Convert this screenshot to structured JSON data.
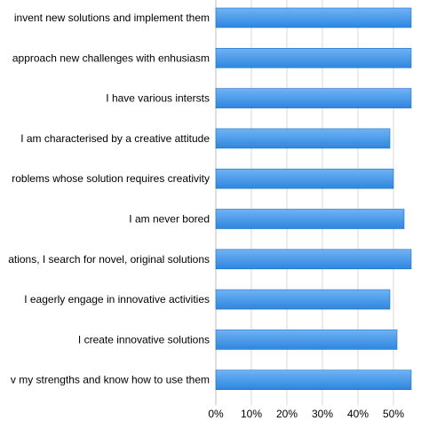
{
  "chart_data": {
    "type": "bar",
    "orientation": "horizontal",
    "categories": [
      "invent new solutions and implement them",
      "approach new challenges with enhusiasm",
      "I have various intersts",
      "I am characterised by a creative attitude",
      "roblems whose solution requires creativity",
      "I am never bored",
      "ations, I search for novel, original solutions",
      "I eagerly engage in innovative activities",
      "I create innovative solutions",
      "v my strengths and know how to use them"
    ],
    "values": [
      55,
      55,
      55,
      49,
      50,
      53,
      55,
      49,
      51,
      55
    ],
    "xlim": [
      0,
      55
    ],
    "xticks": [
      "0%",
      "10%",
      "20%",
      "30%",
      "40%",
      "50%"
    ],
    "xtick_values": [
      0,
      10,
      20,
      30,
      40,
      50
    ],
    "title": "",
    "xlabel": "",
    "ylabel": "",
    "grid": true,
    "bar_color_top": "#6fb3f5",
    "bar_color_bottom": "#2e86de",
    "bar_edge_color": "#1f6fc4"
  }
}
